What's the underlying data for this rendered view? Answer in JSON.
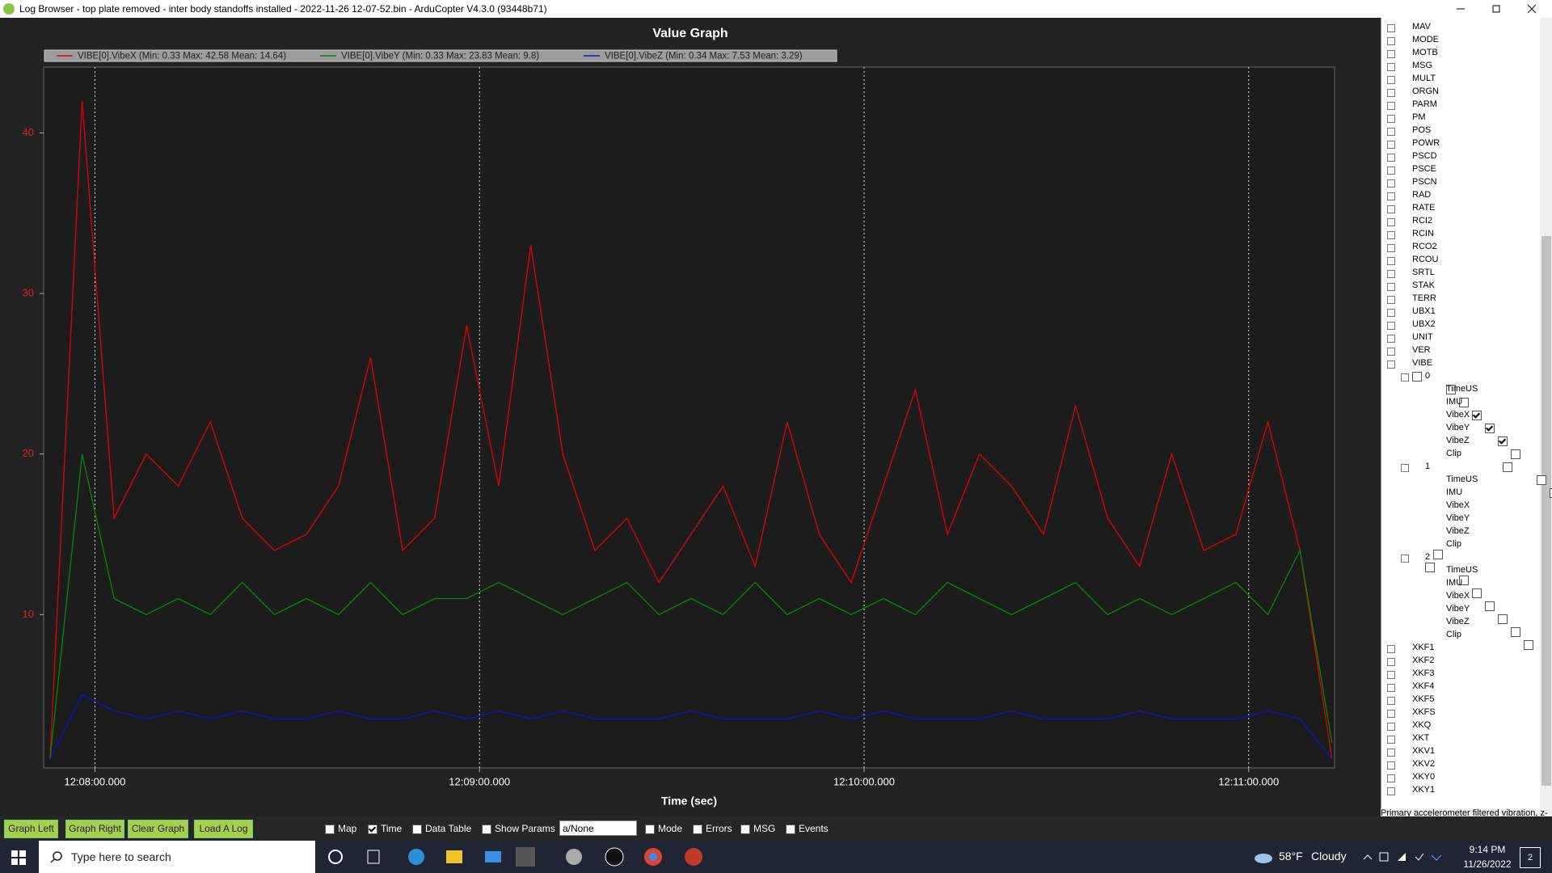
{
  "window": {
    "title": "Log Browser - top plate removed - inter body standoffs installed - 2022-11-26 12-07-52.bin - ArduCopter V4.3.0 (93448b71)"
  },
  "chart_data": {
    "type": "line",
    "title": "Value Graph",
    "x_label": "Time (sec)",
    "x": [
      "12:07:53.000",
      "12:07:58.000",
      "12:08:03.000",
      "12:08:08.000",
      "12:08:13.000",
      "12:08:18.000",
      "12:08:23.000",
      "12:08:28.000",
      "12:08:33.000",
      "12:08:38.000",
      "12:08:43.000",
      "12:08:48.000",
      "12:08:53.000",
      "12:08:58.000",
      "12:09:03.000",
      "12:09:08.000",
      "12:09:13.000",
      "12:09:18.000",
      "12:09:23.000",
      "12:09:28.000",
      "12:09:33.000",
      "12:09:38.000",
      "12:09:43.000",
      "12:09:48.000",
      "12:09:53.000",
      "12:09:58.000",
      "12:10:03.000",
      "12:10:08.000",
      "12:10:13.000",
      "12:10:18.000",
      "12:10:23.000",
      "12:10:28.000",
      "12:10:33.000",
      "12:10:38.000",
      "12:10:43.000",
      "12:10:48.000",
      "12:10:53.000",
      "12:10:58.000",
      "12:11:03.000",
      "12:11:08.000",
      "12:11:13.000"
    ],
    "xlim": [
      "12:07:52.000",
      "12:11:13.400"
    ],
    "xticks": [
      "12:08:00.000",
      "12:09:00.000",
      "12:10:00.000",
      "12:11:00.000"
    ],
    "ylim": [
      0.45,
      44.1
    ],
    "yticks": [
      10,
      20,
      30,
      40
    ],
    "xgrid": true,
    "legend_position": "top",
    "series": [
      {
        "name": "VIBE[0].VibeX  (Min: 0.33 Max: 42.58 Mean: 14.64)",
        "color": "#e00000",
        "values": [
          1,
          42,
          16,
          20,
          18,
          22,
          16,
          14,
          15,
          18,
          26,
          14,
          16,
          28,
          18,
          33,
          20,
          14,
          16,
          12,
          15,
          18,
          13,
          22,
          15,
          12,
          18,
          24,
          15,
          20,
          18,
          15,
          23,
          16,
          13,
          20,
          14,
          15,
          22,
          14,
          1
        ]
      },
      {
        "name": "VIBE[0].VibeY  (Min: 0.33 Max: 23.83 Mean: 9.8)",
        "color": "#008a00",
        "values": [
          1,
          20,
          11,
          10,
          11,
          10,
          12,
          10,
          11,
          10,
          12,
          10,
          11,
          11,
          12,
          11,
          10,
          11,
          12,
          10,
          11,
          10,
          12,
          10,
          11,
          10,
          11,
          10,
          12,
          11,
          10,
          11,
          12,
          10,
          11,
          10,
          11,
          12,
          10,
          14,
          2
        ]
      },
      {
        "name": "VIBE[0].VibeZ  (Min: 0.34 Max: 7.53 Mean: 3.29)",
        "color": "#1010d0",
        "values": [
          1,
          5,
          4,
          3.5,
          4,
          3.5,
          4,
          3.5,
          3.5,
          4,
          3.5,
          3.5,
          4,
          3.5,
          4,
          3.5,
          4,
          3.5,
          3.5,
          3.5,
          4,
          3.5,
          3.5,
          3.5,
          4,
          3.5,
          4,
          3.5,
          3.5,
          3.5,
          4,
          3.5,
          3.5,
          3.5,
          4,
          3.5,
          3.5,
          3.5,
          4,
          3.5,
          1
        ]
      }
    ]
  },
  "tree": [
    {
      "label": "MAV"
    },
    {
      "label": "MODE"
    },
    {
      "label": "MOTB"
    },
    {
      "label": "MSG"
    },
    {
      "label": "MULT"
    },
    {
      "label": "ORGN"
    },
    {
      "label": "PARM"
    },
    {
      "label": "PM"
    },
    {
      "label": "POS"
    },
    {
      "label": "POWR"
    },
    {
      "label": "PSCD"
    },
    {
      "label": "PSCE"
    },
    {
      "label": "PSCN"
    },
    {
      "label": "RAD"
    },
    {
      "label": "RATE"
    },
    {
      "label": "RCI2"
    },
    {
      "label": "RCIN"
    },
    {
      "label": "RCO2"
    },
    {
      "label": "RCOU"
    },
    {
      "label": "SRTL"
    },
    {
      "label": "STAK"
    },
    {
      "label": "TERR"
    },
    {
      "label": "UBX1"
    },
    {
      "label": "UBX2"
    },
    {
      "label": "UNIT"
    },
    {
      "label": "VER"
    },
    {
      "label": "VIBE",
      "children": [
        {
          "label": "0",
          "children": [
            {
              "label": "TimeUS",
              "checked": false
            },
            {
              "label": "IMU",
              "checked": false
            },
            {
              "label": "VibeX",
              "checked": true
            },
            {
              "label": "VibeY",
              "checked": true
            },
            {
              "label": "VibeZ",
              "checked": true
            },
            {
              "label": "Clip",
              "checked": false
            }
          ]
        },
        {
          "label": "1",
          "children": [
            {
              "label": "TimeUS",
              "checked": false
            },
            {
              "label": "IMU",
              "checked": false
            },
            {
              "label": "VibeX",
              "checked": false
            },
            {
              "label": "VibeY",
              "checked": false
            },
            {
              "label": "VibeZ",
              "checked": false
            },
            {
              "label": "Clip",
              "checked": false
            }
          ]
        },
        {
          "label": "2",
          "children": [
            {
              "label": "TimeUS",
              "checked": false
            },
            {
              "label": "IMU",
              "checked": false
            },
            {
              "label": "VibeX",
              "checked": false
            },
            {
              "label": "VibeY",
              "checked": false
            },
            {
              "label": "VibeZ",
              "checked": false
            },
            {
              "label": "Clip",
              "checked": false
            }
          ]
        }
      ]
    },
    {
      "label": "XKF1"
    },
    {
      "label": "XKF2"
    },
    {
      "label": "XKF3"
    },
    {
      "label": "XKF4"
    },
    {
      "label": "XKF5"
    },
    {
      "label": "XKFS"
    },
    {
      "label": "XKQ"
    },
    {
      "label": "XKT"
    },
    {
      "label": "XKV1"
    },
    {
      "label": "XKV2"
    },
    {
      "label": "XKY0"
    },
    {
      "label": "XKY1"
    }
  ],
  "status_text": "Primary accelerometer filtered vibration, z-axis",
  "buttons": [
    "Graph Left",
    "Graph Right",
    "Clear Graph",
    "Load A Log"
  ],
  "options": [
    {
      "label": "Map",
      "checked": false
    },
    {
      "label": "Time",
      "checked": true
    },
    {
      "label": "Data Table",
      "checked": false
    },
    {
      "label": "Show Params",
      "checked": false
    }
  ],
  "dropdown": "a/None",
  "options2": [
    {
      "label": "Mode",
      "checked": false
    },
    {
      "label": "Errors",
      "checked": false
    },
    {
      "label": "MSG",
      "checked": false
    },
    {
      "label": "Events",
      "checked": false
    }
  ],
  "taskbar": {
    "search": "Type here to search",
    "temperature": "58°F",
    "weather": "Cloudy",
    "time": "9:14 PM",
    "date": "11/26/2022",
    "notifications": "2"
  }
}
